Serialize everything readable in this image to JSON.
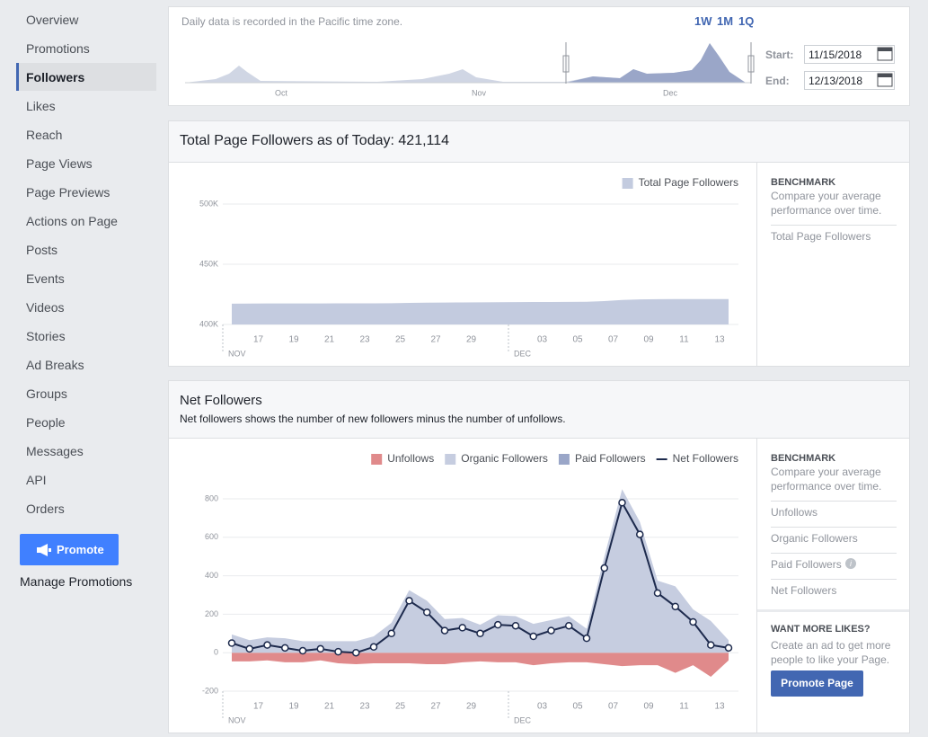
{
  "sidebar": {
    "items": [
      "Overview",
      "Promotions",
      "Followers",
      "Likes",
      "Reach",
      "Page Views",
      "Page Previews",
      "Actions on Page",
      "Posts",
      "Events",
      "Videos",
      "Stories",
      "Ad Breaks",
      "Groups",
      "People",
      "Messages",
      "API",
      "Orders"
    ],
    "promote_button": "Promote",
    "manage_promotions": "Manage Promotions"
  },
  "date_range": {
    "note": "Daily data is recorded in the Pacific time zone.",
    "presets": [
      "1W",
      "1M",
      "1Q"
    ],
    "months": [
      "Oct",
      "Nov",
      "Dec"
    ],
    "start_label": "Start:",
    "start": "11/15/2018",
    "end_label": "End:",
    "end": "12/13/2018"
  },
  "panels": {
    "total_benchmark": {
      "heading": "BENCHMARK",
      "text": "Compare your average performance over time.",
      "items": [
        "Total Page Followers"
      ]
    },
    "net_benchmark": {
      "heading": "BENCHMARK",
      "text": "Compare your average performance over time.",
      "items": [
        "Unfollows",
        "Organic Followers",
        "Paid Followers",
        "Net Followers"
      ]
    },
    "more_likes": {
      "heading": "WANT MORE LIKES?",
      "text": "Create an ad to get more people to like your Page.",
      "button": "Promote Page"
    }
  },
  "chart_data": [
    {
      "type": "area",
      "title": "Total Page Followers as of Today: 421,114",
      "categories": [
        null,
        null,
        "17",
        null,
        "19",
        null,
        "21",
        null,
        "23",
        null,
        "25",
        null,
        "27",
        null,
        "29",
        null,
        null,
        null,
        "03",
        null,
        "05",
        null,
        "07",
        null,
        "09",
        null,
        "11",
        null,
        "13"
      ],
      "months": [
        "NOV",
        "DEC"
      ],
      "series": [
        {
          "name": "Total Page Followers",
          "color": "#c3cbdf",
          "type": "area",
          "values": [
            417300,
            417350,
            417400,
            417420,
            417450,
            417480,
            417500,
            417520,
            417560,
            417650,
            417900,
            418100,
            418200,
            418300,
            418380,
            418480,
            418560,
            418620,
            418700,
            418780,
            418840,
            419400,
            420300,
            420800,
            421000,
            421050,
            421080,
            421100,
            421114
          ]
        }
      ],
      "ylim": [
        400000,
        500000
      ],
      "yticks": [
        {
          "value": 400000,
          "label": "400K"
        },
        {
          "value": 450000,
          "label": "450K"
        },
        {
          "value": 500000,
          "label": "500K"
        }
      ],
      "grid": true,
      "legend": "top-right"
    },
    {
      "type": "area",
      "title": "Net Followers",
      "subtitle": "Net followers shows the number of new followers minus the number of unfollows.",
      "categories": [
        null,
        null,
        "17",
        null,
        "19",
        null,
        "21",
        null,
        "23",
        null,
        "25",
        null,
        "27",
        null,
        "29",
        null,
        null,
        null,
        "03",
        null,
        "05",
        null,
        "07",
        null,
        "09",
        null,
        "11",
        null,
        "13"
      ],
      "months": [
        "NOV",
        "DEC"
      ],
      "series": [
        {
          "name": "Unfollows",
          "color": "#e08a8b",
          "type": "area",
          "values": [
            -45,
            -45,
            -40,
            -50,
            -50,
            -40,
            -55,
            -60,
            -55,
            -55,
            -55,
            -60,
            -60,
            -50,
            -45,
            -50,
            -50,
            -65,
            -55,
            -50,
            -50,
            -60,
            -70,
            -65,
            -65,
            -105,
            -65,
            -125,
            -40
          ]
        },
        {
          "name": "Organic Followers",
          "color": "#c6cde0",
          "type": "area",
          "values": [
            95,
            65,
            80,
            75,
            60,
            60,
            60,
            60,
            85,
            155,
            325,
            270,
            175,
            180,
            145,
            195,
            190,
            150,
            170,
            190,
            125,
            500,
            850,
            680,
            375,
            345,
            225,
            165,
            65
          ]
        },
        {
          "name": "Paid Followers",
          "color": "#9aa6c8",
          "type": "area",
          "values": [
            0,
            0,
            0,
            0,
            0,
            0,
            0,
            0,
            0,
            0,
            0,
            0,
            0,
            0,
            0,
            0,
            0,
            0,
            0,
            0,
            0,
            0,
            0,
            0,
            0,
            0,
            0,
            0,
            0
          ]
        },
        {
          "name": "Net Followers",
          "color": "#1d2a4d",
          "type": "line",
          "values": [
            50,
            20,
            40,
            25,
            10,
            20,
            5,
            0,
            30,
            100,
            270,
            210,
            115,
            130,
            100,
            145,
            140,
            85,
            115,
            140,
            75,
            440,
            780,
            615,
            310,
            240,
            160,
            40,
            25
          ]
        }
      ],
      "ylim": [
        -200,
        870
      ],
      "yticks": [
        -200,
        0,
        200,
        400,
        600,
        800
      ],
      "grid": true,
      "legend": "top-right"
    }
  ]
}
